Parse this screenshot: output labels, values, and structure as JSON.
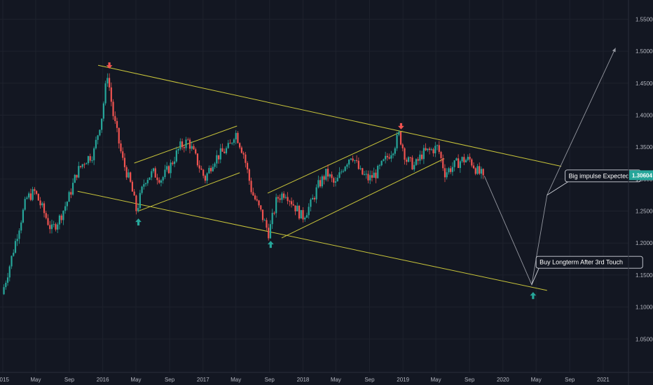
{
  "chart_data": {
    "type": "candlestick",
    "title": "",
    "xlabel": "",
    "ylabel": "",
    "x_range": [
      "2015-01-01",
      "2021-03-01"
    ],
    "ylim": [
      1.0,
      1.58
    ],
    "y_ticks": [
      "1.05000",
      "1.10000",
      "1.15000",
      "1.20000",
      "1.25000",
      "1.30000",
      "1.35000",
      "1.40000",
      "1.45000",
      "1.50000",
      "1.55000"
    ],
    "x_ticks": [
      "2015",
      "May",
      "Sep",
      "2016",
      "May",
      "Sep",
      "2017",
      "May",
      "Sep",
      "2018",
      "May",
      "Sep",
      "2019",
      "May",
      "Sep",
      "2020",
      "May",
      "Sep",
      "2021"
    ],
    "grid": true,
    "current_price": "1.30604",
    "colors": {
      "background": "#131722",
      "up": "#26a69a",
      "down": "#ef5350",
      "trendline": "#c9c53a",
      "projection": "#9598a1",
      "text": "#b2b5be"
    },
    "price_path": [
      [
        "2015-01-05",
        1.12
      ],
      [
        "2015-02-05",
        1.17
      ],
      [
        "2015-03-05",
        1.22
      ],
      [
        "2015-04-05",
        1.27
      ],
      [
        "2015-05-05",
        1.28
      ],
      [
        "2015-06-05",
        1.25
      ],
      [
        "2015-07-05",
        1.22
      ],
      [
        "2015-08-05",
        1.24
      ],
      [
        "2015-09-05",
        1.27
      ],
      [
        "2015-10-05",
        1.31
      ],
      [
        "2015-11-05",
        1.33
      ],
      [
        "2015-12-05",
        1.34
      ],
      [
        "2016-01-05",
        1.4
      ],
      [
        "2016-01-25",
        1.465
      ],
      [
        "2016-02-15",
        1.4
      ],
      [
        "2016-03-20",
        1.33
      ],
      [
        "2016-04-20",
        1.29
      ],
      [
        "2016-05-10",
        1.25
      ],
      [
        "2016-06-10",
        1.3
      ],
      [
        "2016-07-10",
        1.31
      ],
      [
        "2016-08-10",
        1.3
      ],
      [
        "2016-09-10",
        1.32
      ],
      [
        "2016-10-15",
        1.35
      ],
      [
        "2016-11-15",
        1.36
      ],
      [
        "2016-12-15",
        1.33
      ],
      [
        "2017-01-15",
        1.3
      ],
      [
        "2017-02-15",
        1.33
      ],
      [
        "2017-03-15",
        1.34
      ],
      [
        "2017-04-15",
        1.35
      ],
      [
        "2017-05-05",
        1.375
      ],
      [
        "2017-06-05",
        1.34
      ],
      [
        "2017-07-05",
        1.28
      ],
      [
        "2017-08-05",
        1.25
      ],
      [
        "2017-09-05",
        1.215
      ],
      [
        "2017-10-05",
        1.27
      ],
      [
        "2017-11-05",
        1.28
      ],
      [
        "2017-12-05",
        1.26
      ],
      [
        "2018-01-05",
        1.24
      ],
      [
        "2018-02-05",
        1.26
      ],
      [
        "2018-03-05",
        1.29
      ],
      [
        "2018-04-05",
        1.31
      ],
      [
        "2018-05-05",
        1.29
      ],
      [
        "2018-06-05",
        1.32
      ],
      [
        "2018-07-05",
        1.34
      ],
      [
        "2018-08-05",
        1.31
      ],
      [
        "2018-09-05",
        1.3
      ],
      [
        "2018-10-05",
        1.31
      ],
      [
        "2018-11-05",
        1.33
      ],
      [
        "2018-12-05",
        1.35
      ],
      [
        "2018-12-25",
        1.37
      ],
      [
        "2019-01-20",
        1.33
      ],
      [
        "2019-02-20",
        1.32
      ],
      [
        "2019-03-20",
        1.34
      ],
      [
        "2019-04-20",
        1.345
      ],
      [
        "2019-05-15",
        1.35
      ],
      [
        "2019-06-10",
        1.31
      ],
      [
        "2019-07-10",
        1.32
      ],
      [
        "2019-08-10",
        1.33
      ],
      [
        "2019-09-10",
        1.33
      ],
      [
        "2019-10-10",
        1.31
      ],
      [
        "2019-10-25",
        1.30604
      ]
    ],
    "trendlines": [
      {
        "from": [
          "2015-10-01",
          1.281
        ],
        "to": [
          "2020-06-10",
          1.126
        ]
      },
      {
        "from": [
          "2015-12-15",
          1.478
        ],
        "to": [
          "2020-08-01",
          1.32
        ]
      },
      {
        "from": [
          "2016-04-25",
          1.325
        ],
        "to": [
          "2017-05-05",
          1.383
        ]
      },
      {
        "from": [
          "2016-05-10",
          1.25
        ],
        "to": [
          "2017-05-15",
          1.31
        ]
      },
      {
        "from": [
          "2017-08-25",
          1.278
        ],
        "to": [
          "2018-12-30",
          1.375
        ]
      },
      {
        "from": [
          "2017-10-15",
          1.208
        ],
        "to": [
          "2019-06-01",
          1.332
        ]
      }
    ],
    "projection": [
      [
        "2019-10-25",
        1.305
      ],
      [
        "2020-04-15",
        1.135
      ],
      [
        "2020-06-10",
        1.275
      ],
      [
        "2021-02-15",
        1.505
      ]
    ],
    "markers": [
      {
        "date": "2016-01-25",
        "price": 1.465,
        "dir": "down"
      },
      {
        "date": "2018-12-25",
        "price": 1.37,
        "dir": "down"
      },
      {
        "date": "2016-05-10",
        "price": 1.245,
        "dir": "up"
      },
      {
        "date": "2017-09-05",
        "price": 1.21,
        "dir": "up"
      },
      {
        "date": "2020-04-20",
        "price": 1.13,
        "dir": "up"
      }
    ],
    "annotations": [
      {
        "text": "Big impulse Expected",
        "date": "2020-08-15",
        "price": 1.305
      },
      {
        "text": "Buy Longterm  After 3rd Touch",
        "date": "2020-05-01",
        "price": 1.17
      }
    ]
  }
}
